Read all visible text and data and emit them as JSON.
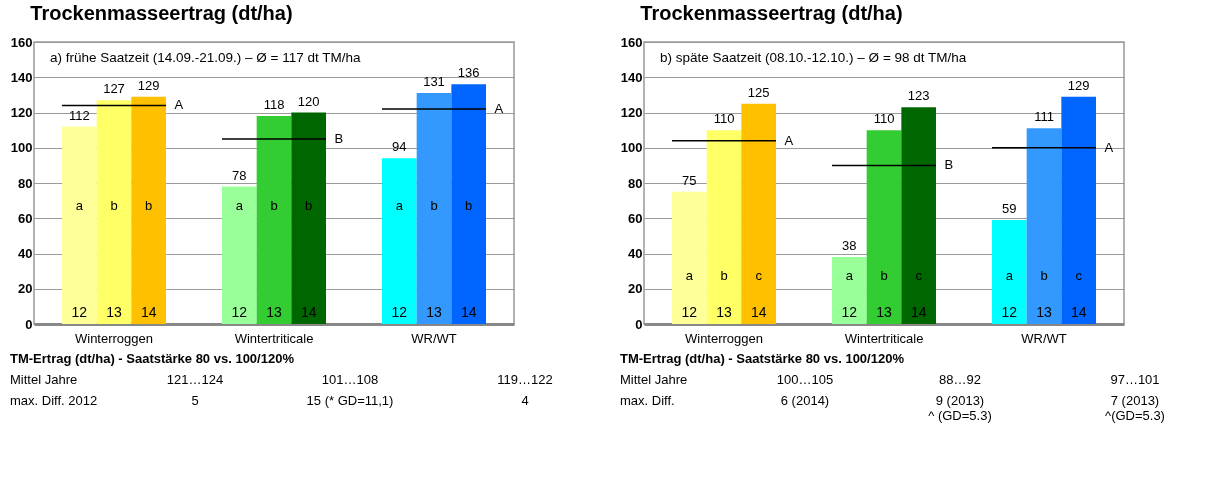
{
  "chart_data": [
    {
      "type": "bar",
      "title": "Trockenmasseertrag (dt/ha)",
      "subtitle": "a) frühe Saatzeit (14.09.-21.09.) – Ø = 117 dt TM/ha",
      "categories": [
        "Winterroggen",
        "Wintertriticale",
        "WR/WT"
      ],
      "series": [
        {
          "name": "12",
          "colors": [
            "#ffff99",
            "#99ff99",
            "#00ffff"
          ],
          "values": [
            112,
            78,
            94
          ]
        },
        {
          "name": "13",
          "colors": [
            "#ffff66",
            "#33cc33",
            "#3399ff"
          ],
          "values": [
            127,
            118,
            131
          ]
        },
        {
          "name": "14",
          "colors": [
            "#ffc000",
            "#006600",
            "#0066ff"
          ],
          "values": [
            129,
            120,
            136
          ]
        }
      ],
      "data_labels": true,
      "ylim": [
        0,
        160
      ],
      "yticks": [
        0,
        20,
        40,
        60,
        80,
        100,
        120,
        140,
        160
      ],
      "grid": "y",
      "ref_lines": [
        {
          "axis": "y",
          "value": 124,
          "label": "A"
        },
        {
          "axis": "y",
          "value": 105,
          "label": "B"
        },
        {
          "axis": "y",
          "value": 122,
          "label": "A"
        }
      ],
      "annotations": [
        "a",
        "b",
        "b",
        "a",
        "b",
        "b",
        "a",
        "b",
        "b",
        "TM-Ertrag (dt/ha)  - Saatstärke 80 vs. 100/120%",
        "Mittel Jahre",
        "121…124",
        "101…108",
        "119…122",
        "max. Diff. 2012",
        "5",
        "15 (* GD=11,1)",
        "4"
      ]
    },
    {
      "type": "bar",
      "title": "Trockenmasseertrag (dt/ha)",
      "subtitle": "b) späte Saatzeit (08.10.-12.10.) – Ø = 98 dt TM/ha",
      "categories": [
        "Winterroggen",
        "Wintertriticale",
        "WR/WT"
      ],
      "series": [
        {
          "name": "12",
          "colors": [
            "#ffff99",
            "#99ff99",
            "#00ffff"
          ],
          "values": [
            75,
            38,
            59
          ]
        },
        {
          "name": "13",
          "colors": [
            "#ffff66",
            "#33cc33",
            "#3399ff"
          ],
          "values": [
            110,
            110,
            111
          ]
        },
        {
          "name": "14",
          "colors": [
            "#ffc000",
            "#006600",
            "#0066ff"
          ],
          "values": [
            125,
            123,
            129
          ]
        }
      ],
      "data_labels": true,
      "ylim": [
        0,
        160
      ],
      "yticks": [
        0,
        20,
        40,
        60,
        80,
        100,
        120,
        140,
        160
      ],
      "grid": "y",
      "ref_lines": [
        {
          "axis": "y",
          "value": 104,
          "label": "A"
        },
        {
          "axis": "y",
          "value": 90,
          "label": "B"
        },
        {
          "axis": "y",
          "value": 100,
          "label": "A"
        }
      ],
      "annotations": [
        "a",
        "b",
        "c",
        "a",
        "b",
        "c",
        "a",
        "b",
        "c",
        "TM-Ertrag (dt/ha)  - Saatstärke 80 vs. 100/120%",
        "Mittel Jahre",
        "100…105",
        "88…92",
        "97…101",
        "max. Diff.",
        "6 (2014)",
        "9 (2013)\n^ (GD=5.3)",
        "7 (2013)\n^(GD=5.3)"
      ]
    }
  ]
}
